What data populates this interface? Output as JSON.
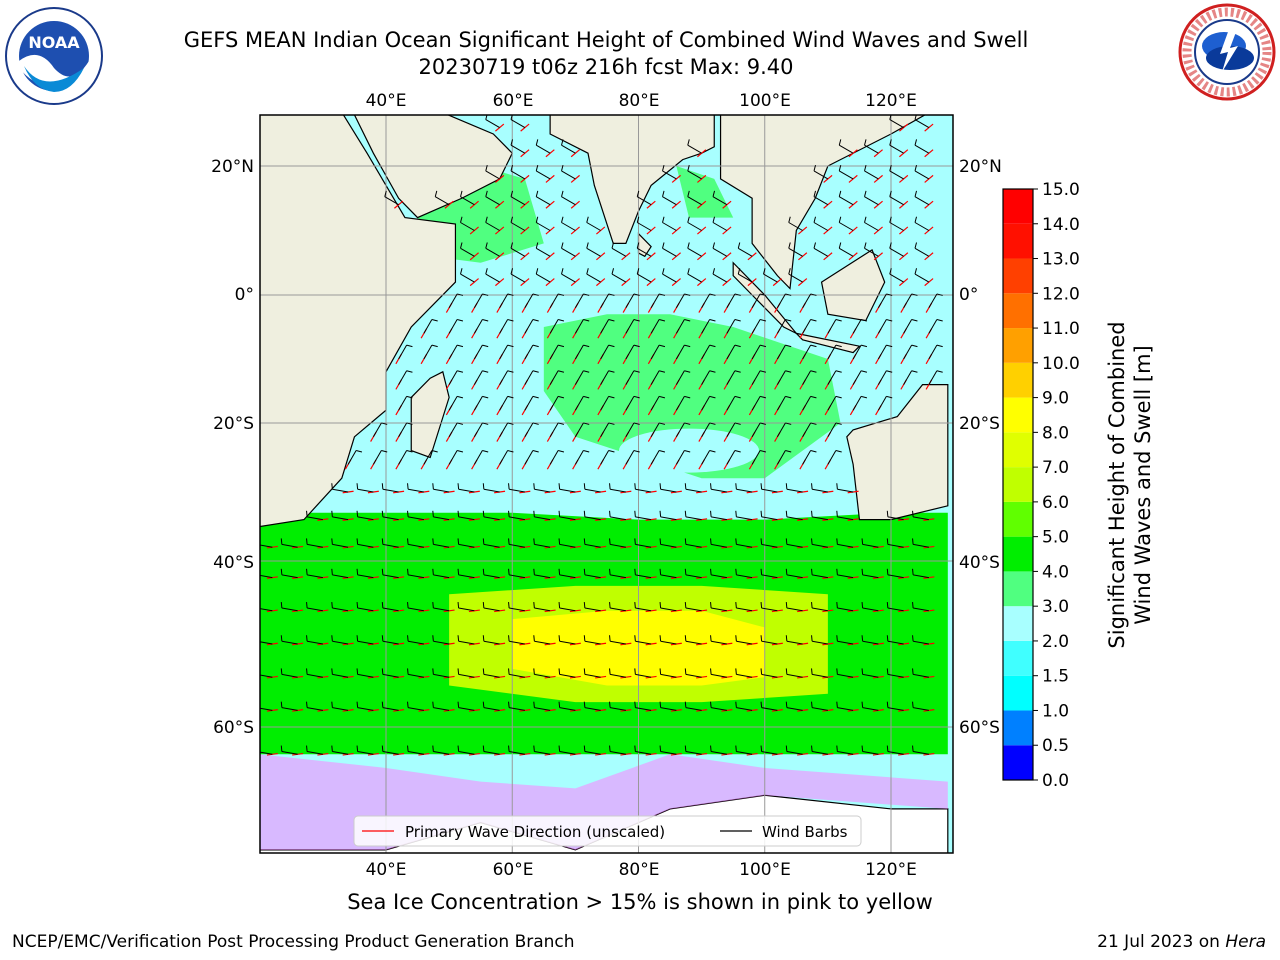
{
  "header": {
    "title_line1": "GEFS MEAN Indian Ocean Significant Height of Combined Wind Waves and Swell",
    "title_line2": "20230719 t06z 216h fcst   Max: 9.40",
    "noaa_logo_text": "NOAA",
    "noaa_logo_ring": "NATIONAL OCEANIC AND ATMOSPHERIC ADMINISTRATION · U.S. DEPARTMENT OF COMMERCE",
    "nws_logo_ring": "NATIONAL WEATHER SERVICE"
  },
  "map": {
    "lon_labels": [
      "40°E",
      "60°E",
      "80°E",
      "100°E",
      "120°E"
    ],
    "lat_labels": [
      "20°N",
      "0°",
      "20°S",
      "40°S",
      "60°S"
    ],
    "legend": {
      "wave_label": "Primary Wave Direction (unscaled)",
      "barb_label": "Wind Barbs",
      "wave_color": "#ff0000",
      "barb_color": "#000000"
    }
  },
  "colorbar": {
    "label_line1": "Significant Height of Combined",
    "label_line2": "Wind Waves and Swell [m]",
    "ticks": [
      "0.0",
      "0.5",
      "1.0",
      "1.5",
      "2.0",
      "3.0",
      "4.0",
      "5.0",
      "6.0",
      "7.0",
      "8.0",
      "9.0",
      "10.0",
      "11.0",
      "12.0",
      "13.0",
      "14.0",
      "15.0"
    ],
    "colors": [
      "#0000ff",
      "#0080ff",
      "#00ffff",
      "#40ffff",
      "#a8ffff",
      "#50ff80",
      "#00ee00",
      "#60ff00",
      "#c0ff00",
      "#e0ff00",
      "#ffff00",
      "#ffd000",
      "#ffa000",
      "#ff7000",
      "#ff4000",
      "#ff1000",
      "#ff0000"
    ]
  },
  "chart_data": {
    "type": "heatmap",
    "title": "GEFS MEAN Indian Ocean Significant Height of Combined Wind Waves and Swell",
    "max_value": 9.4,
    "lon_ticks": [
      40,
      60,
      80,
      100,
      120
    ],
    "lat_ticks": [
      20,
      0,
      -20,
      -40,
      -60
    ],
    "colorbar_range": [
      0.0,
      15.0
    ],
    "regions": [
      {
        "level": 2.0,
        "lons": [
          40,
          50,
          60,
          70,
          80,
          90,
          100,
          110,
          110,
          100,
          90,
          80,
          70,
          60,
          50,
          40
        ],
        "lats": [
          0,
          0,
          0,
          0,
          0,
          0,
          0,
          0,
          -5,
          -5,
          -5,
          -5,
          -5,
          -5,
          -5,
          -5
        ]
      },
      {
        "level": 3.5,
        "lons": [
          65,
          75,
          85,
          95,
          110,
          112,
          100,
          90,
          80,
          70,
          65
        ],
        "lats": [
          -5,
          -3,
          -3,
          -5,
          -10,
          -20,
          -28,
          -28,
          -25,
          -22,
          -15
        ]
      },
      {
        "level": 4.5,
        "lons": [
          20,
          40,
          60,
          80,
          100,
          120,
          129,
          129,
          120,
          100,
          80,
          60,
          40,
          20
        ],
        "lats": [
          -33,
          -33,
          -33,
          -34,
          -34,
          -33,
          -33,
          -62,
          -62,
          -62,
          -62,
          -62,
          -62,
          -62
        ]
      },
      {
        "level": 6.5,
        "lons": [
          50,
          70,
          90,
          110,
          110,
          90,
          70,
          50
        ],
        "lats": [
          -44,
          -43,
          -43,
          -44,
          -56,
          -57,
          -57,
          -55
        ]
      },
      {
        "level": 8.0,
        "lons": [
          60,
          75,
          90,
          100,
          100,
          90,
          75,
          60
        ],
        "lats": [
          -47,
          -46,
          -46,
          -48,
          -54,
          -55,
          -55,
          -53
        ]
      }
    ],
    "sea_ice_caption": "Sea Ice Concentration > 15% is shown in pink to yellow"
  },
  "footer": {
    "left": "NCEP/EMC/Verification Post Processing Product Generation Branch",
    "right_date": "21 Jul 2023 on ",
    "right_host": "Hera"
  }
}
